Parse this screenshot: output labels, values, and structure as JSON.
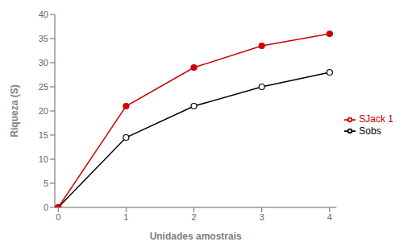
{
  "chart_data": {
    "type": "line",
    "x": [
      0,
      1,
      2,
      3,
      4
    ],
    "series": [
      {
        "name": "Sobs",
        "color": "#000000",
        "marker": "open_circle",
        "values": [
          0,
          14.5,
          21.0,
          25.0,
          28.0
        ]
      },
      {
        "name": "SJack 1",
        "color": "#cc0000",
        "marker": "circle",
        "values": [
          0,
          21.0,
          29.0,
          33.5,
          36.0
        ]
      }
    ],
    "xlabel": "Unidades amostrais",
    "ylabel": "Riqueza (S)",
    "xlim": [
      -0.05,
      4.1
    ],
    "ylim": [
      0,
      40
    ],
    "xticks": [
      0,
      1,
      2,
      3,
      4
    ],
    "yticks": [
      0,
      5,
      10,
      15,
      20,
      25,
      30,
      35,
      40
    ],
    "grid": false,
    "legend": "right"
  }
}
